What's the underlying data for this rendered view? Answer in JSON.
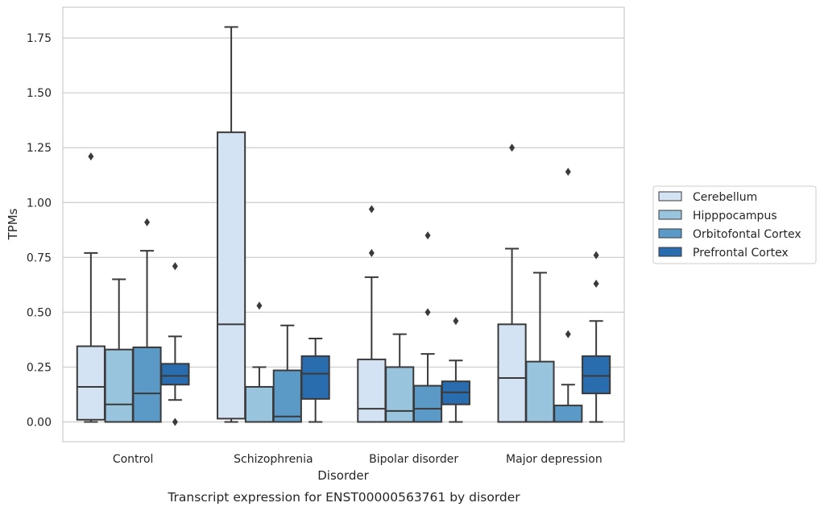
{
  "chart_data": {
    "type": "boxplot",
    "xlabel": "Disorder",
    "ylabel": "TPMs",
    "caption": "Transcript expression for ENST00000563761 by disorder",
    "ylim": [
      -0.09,
      1.89
    ],
    "yticks": [
      "0.00",
      "0.25",
      "0.50",
      "0.75",
      "1.00",
      "1.25",
      "1.50",
      "1.75"
    ],
    "grid": true,
    "legend_position": "right",
    "categories": [
      "Control",
      "Schizophrenia",
      "Bipolar disorder",
      "Major depression"
    ],
    "series": [
      {
        "name": "Cerebellum",
        "color": "#d4e3f3",
        "boxes": [
          {
            "whislo": 0.0,
            "q1": 0.01,
            "med": 0.16,
            "q3": 0.345,
            "whishi": 0.77,
            "fliers": [
              1.21
            ]
          },
          {
            "whislo": 0.0,
            "q1": 0.015,
            "med": 0.445,
            "q3": 1.32,
            "whishi": 1.8,
            "fliers": []
          },
          {
            "whislo": 0.0,
            "q1": 0.0,
            "med": 0.06,
            "q3": 0.285,
            "whishi": 0.66,
            "fliers": [
              0.77,
              0.97
            ]
          },
          {
            "whislo": 0.0,
            "q1": 0.0,
            "med": 0.2,
            "q3": 0.445,
            "whishi": 0.79,
            "fliers": [
              1.25
            ]
          }
        ]
      },
      {
        "name": "Hipppocampus",
        "color": "#99c4dd",
        "boxes": [
          {
            "whislo": 0.0,
            "q1": 0.0,
            "med": 0.08,
            "q3": 0.33,
            "whishi": 0.65,
            "fliers": []
          },
          {
            "whislo": 0.0,
            "q1": 0.0,
            "med": 0.0,
            "q3": 0.16,
            "whishi": 0.25,
            "fliers": [
              0.53
            ]
          },
          {
            "whislo": 0.0,
            "q1": 0.0,
            "med": 0.05,
            "q3": 0.25,
            "whishi": 0.4,
            "fliers": []
          },
          {
            "whislo": 0.0,
            "q1": 0.0,
            "med": 0.0,
            "q3": 0.275,
            "whishi": 0.68,
            "fliers": []
          }
        ]
      },
      {
        "name": "Orbitofontal Cortex",
        "color": "#5b9ac6",
        "boxes": [
          {
            "whislo": 0.0,
            "q1": 0.0,
            "med": 0.13,
            "q3": 0.34,
            "whishi": 0.78,
            "fliers": [
              0.91
            ]
          },
          {
            "whislo": 0.0,
            "q1": 0.0,
            "med": 0.025,
            "q3": 0.235,
            "whishi": 0.44,
            "fliers": []
          },
          {
            "whislo": 0.0,
            "q1": 0.0,
            "med": 0.06,
            "q3": 0.165,
            "whishi": 0.31,
            "fliers": [
              0.5,
              0.85
            ]
          },
          {
            "whislo": 0.0,
            "q1": 0.0,
            "med": 0.0,
            "q3": 0.075,
            "whishi": 0.17,
            "fliers": [
              0.4,
              1.14
            ]
          }
        ]
      },
      {
        "name": "Prefrontal Cortex",
        "color": "#2a6daf",
        "boxes": [
          {
            "whislo": 0.1,
            "q1": 0.17,
            "med": 0.21,
            "q3": 0.265,
            "whishi": 0.39,
            "fliers": [
              0.0,
              0.71
            ]
          },
          {
            "whislo": 0.0,
            "q1": 0.105,
            "med": 0.22,
            "q3": 0.3,
            "whishi": 0.38,
            "fliers": []
          },
          {
            "whislo": 0.0,
            "q1": 0.08,
            "med": 0.135,
            "q3": 0.185,
            "whishi": 0.28,
            "fliers": [
              0.46
            ]
          },
          {
            "whislo": 0.0,
            "q1": 0.13,
            "med": 0.21,
            "q3": 0.3,
            "whishi": 0.46,
            "fliers": [
              0.63,
              0.76
            ]
          }
        ]
      }
    ]
  }
}
